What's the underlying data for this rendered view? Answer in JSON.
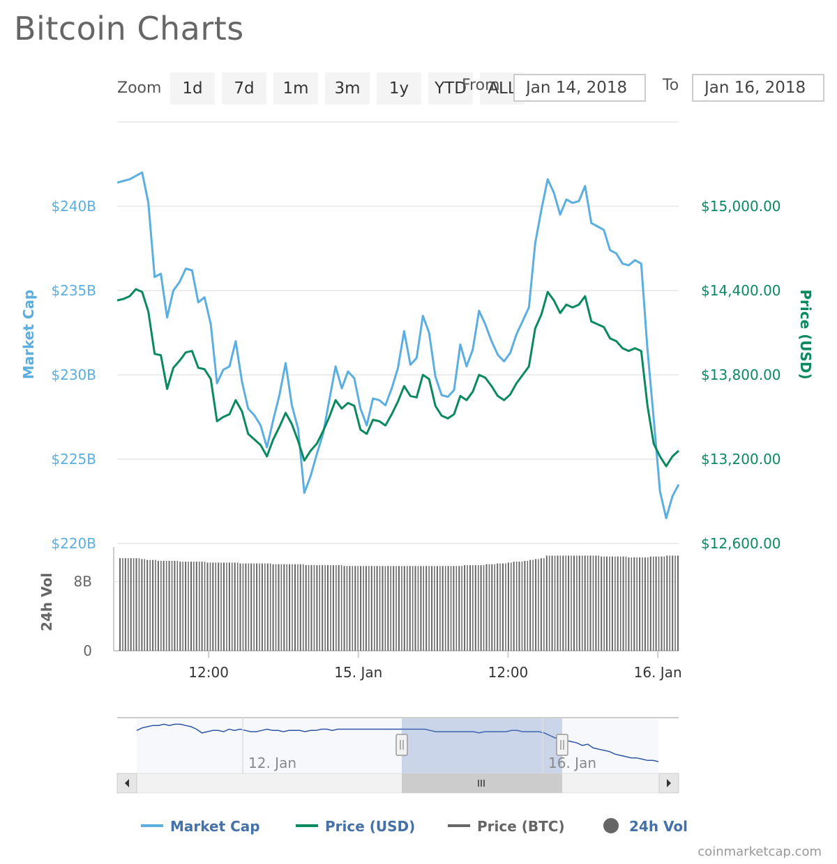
{
  "page": {
    "title": "Bitcoin Charts",
    "credit": "coinmarketcap.com"
  },
  "toolbar": {
    "zoom_label": "Zoom",
    "zoom_buttons": [
      "1d",
      "7d",
      "1m",
      "3m",
      "1y",
      "YTD",
      "ALL"
    ],
    "from_label": "From",
    "to_label": "To",
    "from_value": "Jan 14, 2018",
    "to_value": "Jan 16, 2018"
  },
  "colors": {
    "market_cap": "#5aaee0",
    "price_usd": "#0a8a5c",
    "price_btc": "#666666",
    "volume": "#666666",
    "legend_text": "#4472a8",
    "navigator_line": "#2e55a4",
    "navigator_mask": "rgba(102,133,194,0.3)"
  },
  "legend": [
    {
      "label": "Market Cap",
      "symbol": "line",
      "color": "#5aaee0"
    },
    {
      "label": "Price (USD)",
      "symbol": "line",
      "color": "#0a8a5c"
    },
    {
      "label": "Price (BTC)",
      "symbol": "line",
      "color": "#666666"
    },
    {
      "label": "24h Vol",
      "symbol": "circle",
      "color": "#666666"
    }
  ],
  "chart_data": [
    {
      "type": "line",
      "title": "",
      "x_range": [
        "Jan 14, 2018 04:40",
        "Jan 16, 2018 03:00"
      ],
      "x_ticks": [
        {
          "label": "12:00",
          "t": 7.33
        },
        {
          "label": "15. Jan",
          "t": 19.33
        },
        {
          "label": "12:00",
          "t": 31.33
        },
        {
          "label": "16. Jan",
          "t": 43.33
        }
      ],
      "x_unit": "hours since Jan 14, 2018 04:40",
      "y_left": {
        "label": "Market Cap",
        "range": [
          220,
          245
        ],
        "ticks": [
          220,
          225,
          230,
          235,
          240
        ],
        "tick_labels": [
          "$220B",
          "$225B",
          "$230B",
          "$235B",
          "$240B"
        ]
      },
      "y_right": {
        "label": "Price (USD)",
        "range": [
          12600,
          15600
        ],
        "ticks": [
          12600,
          13200,
          13800,
          14400,
          15000
        ],
        "tick_labels": [
          "$12,600.00",
          "$13,200.00",
          "$13,800.00",
          "$14,400.00",
          "$15,000.00"
        ]
      },
      "grid": true,
      "series": [
        {
          "name": "Market Cap",
          "axis": "left",
          "unit": "B USD",
          "x": [
            0,
            0.5,
            1,
            1.5,
            2,
            2.5,
            3,
            3.5,
            4,
            4.5,
            5,
            5.5,
            6,
            6.5,
            7,
            7.5,
            8,
            8.5,
            9,
            9.5,
            10,
            10.5,
            11,
            11.5,
            12,
            12.5,
            13,
            13.5,
            14,
            14.5,
            15,
            15.5,
            16,
            16.5,
            17,
            17.5,
            18,
            18.5,
            19,
            19.5,
            20,
            20.5,
            21,
            21.5,
            22,
            22.5,
            23,
            23.5,
            24,
            24.5,
            25,
            25.5,
            26,
            26.5,
            27,
            27.5,
            28,
            28.5,
            29,
            29.5,
            30,
            30.5,
            31,
            31.5,
            32,
            32.5,
            33,
            33.5,
            34,
            34.5,
            35,
            35.5,
            36,
            36.5,
            37,
            37.5,
            38,
            38.5,
            39,
            39.5,
            40,
            40.5,
            41,
            41.5,
            42,
            42.5,
            43,
            43.5,
            44,
            44.5,
            45,
            45.5,
            46,
            46.5,
            47,
            47.5,
            48,
            48.5,
            49,
            49.5,
            50,
            50.5,
            51
          ],
          "values": [
            241.4,
            241.5,
            241.6,
            241.8,
            242.0,
            240.2,
            235.8,
            236.0,
            233.4,
            235.0,
            235.5,
            236.3,
            236.2,
            234.3,
            234.6,
            233.0,
            229.5,
            230.3,
            230.5,
            232.0,
            229.6,
            228.0,
            227.6,
            227.0,
            225.7,
            227.3,
            228.8,
            230.7,
            228.2,
            226.8,
            223.0,
            224.0,
            225.3,
            226.5,
            228.5,
            230.5,
            229.2,
            230.2,
            229.8,
            228.0,
            227.0,
            228.6,
            228.5,
            228.2,
            229.2,
            230.4,
            232.6,
            230.6,
            231.0,
            233.5,
            232.5,
            229.9,
            228.8,
            228.7,
            229.1,
            231.8,
            230.5,
            231.5,
            233.8,
            233.0,
            232.0,
            231.2,
            230.8,
            231.3,
            232.4,
            233.2,
            234.0,
            237.8,
            239.8,
            241.6,
            240.8,
            239.5,
            240.4,
            240.2,
            240.3,
            241.2,
            239.0,
            238.8,
            238.6,
            237.4,
            237.2,
            236.6,
            236.5,
            236.8,
            236.6,
            231.5,
            227.4,
            223.1,
            221.5,
            222.8,
            223.5,
            221.4,
            221.7,
            223.0,
            222.6,
            223.5,
            224.0,
            223.8,
            223.4,
            223.2,
            223.0,
            222.9,
            223.1
          ],
          "note_x_domain": "series truncated to hours 0-45 on the main plot"
        },
        {
          "name": "Price (USD)",
          "axis": "right",
          "unit": "USD",
          "values_main": [
            14330,
            14340,
            14360,
            14410,
            14390,
            14250,
            13950,
            13940,
            13700,
            13850,
            13900,
            13960,
            13970,
            13850,
            13840,
            13770,
            13470,
            13500,
            13520,
            13620,
            13540,
            13380,
            13340,
            13300,
            13220,
            13340,
            13430,
            13530,
            13450,
            13330,
            13190,
            13260,
            13310,
            13400,
            13500,
            13620,
            13560,
            13600,
            13580,
            13410,
            13380,
            13480,
            13470,
            13440,
            13520,
            13610,
            13720,
            13650,
            13640,
            13800,
            13770,
            13580,
            13510,
            13490,
            13520,
            13650,
            13620,
            13680,
            13800,
            13780,
            13720,
            13650,
            13620,
            13660,
            13740,
            13800,
            13860,
            14130,
            14230,
            14390,
            14330,
            14240,
            14300,
            14280,
            14300,
            14360,
            14180,
            14160,
            14140,
            14060,
            14040,
            13990,
            13970,
            13990,
            13970,
            13580,
            13310,
            13220,
            13150,
            13220,
            13260,
            13150,
            13170,
            13240,
            13200,
            13280,
            13300,
            13310,
            13270,
            13240,
            13230,
            13220,
            13230
          ]
        }
      ]
    },
    {
      "type": "bar",
      "title": "",
      "axis_label": "24h Vol",
      "y_ticks": [
        0,
        8
      ],
      "y_tick_labels": [
        "0",
        "8B"
      ],
      "y_range": [
        0,
        12
      ],
      "unit": "B USD",
      "series": [
        {
          "name": "24h Vol",
          "values": [
            10.7,
            10.7,
            10.7,
            10.7,
            10.6,
            10.5,
            10.5,
            10.4,
            10.4,
            10.4,
            10.4,
            10.3,
            10.3,
            10.3,
            10.3,
            10.3,
            10.2,
            10.2,
            10.2,
            10.2,
            10.2,
            10.2,
            10.1,
            10.1,
            10.1,
            10.1,
            10.1,
            10.1,
            10.0,
            10.0,
            10.0,
            10.0,
            10.0,
            10.0,
            9.9,
            9.9,
            9.9,
            9.9,
            9.9,
            9.9,
            9.9,
            9.8,
            9.8,
            9.8,
            9.8,
            9.8,
            9.8,
            9.8,
            9.8,
            9.8,
            9.8,
            9.8,
            9.8,
            9.8,
            9.8,
            9.8,
            9.8,
            9.8,
            9.8,
            9.8,
            9.8,
            9.8,
            9.8,
            9.9,
            9.9,
            9.9,
            9.9,
            10.0,
            10.0,
            10.1,
            10.1,
            10.2,
            10.3,
            10.3,
            10.4,
            10.5,
            10.6,
            10.7,
            11.0,
            11.0,
            11.0,
            11.0,
            11.0,
            11.0,
            11.0,
            11.0,
            11.0,
            11.0,
            10.9,
            10.9,
            10.9,
            10.9,
            10.9,
            10.8,
            10.8,
            10.8,
            10.8,
            10.9,
            10.9,
            10.9,
            11.0,
            11.0,
            11.0
          ]
        }
      ]
    },
    {
      "type": "area",
      "title": "",
      "role": "navigator",
      "x_ticks": [
        "12. Jan",
        "16. Jan"
      ],
      "selected_range": [
        "Jan 14, 2018",
        "Jan 16, 2018"
      ],
      "series": [
        {
          "name": "Market Cap",
          "values": [
            237,
            238,
            238.5,
            239,
            239,
            239.5,
            239,
            239.5,
            239.5,
            239,
            238.5,
            237.5,
            236,
            236.5,
            237,
            237,
            236.5,
            237.5,
            237,
            237.5,
            237,
            236.5,
            236.5,
            237,
            237.5,
            237,
            237,
            236.5,
            237,
            237,
            237,
            236.5,
            237,
            237,
            237.5,
            237.5,
            237,
            237.5,
            237.5,
            237.5,
            237.5,
            237.5,
            237.5,
            237.5,
            237.5,
            237.5,
            237.5,
            237.5,
            237.5,
            237.5,
            237.5,
            237.5,
            237.5,
            237.5,
            237,
            236.5,
            236.5,
            236.5,
            236.5,
            236.5,
            236.5,
            236.5,
            236.5,
            236,
            236.5,
            236.5,
            236.5,
            236.5,
            236.5,
            237,
            237,
            236.5,
            236.5,
            236.5,
            236.5,
            236,
            235,
            234,
            234.5,
            233,
            232.5,
            232,
            231,
            231.5,
            230,
            229.5,
            229,
            228.5,
            227.5,
            227,
            226.5,
            226,
            226,
            225.5,
            225,
            225,
            224.5
          ]
        }
      ]
    }
  ]
}
